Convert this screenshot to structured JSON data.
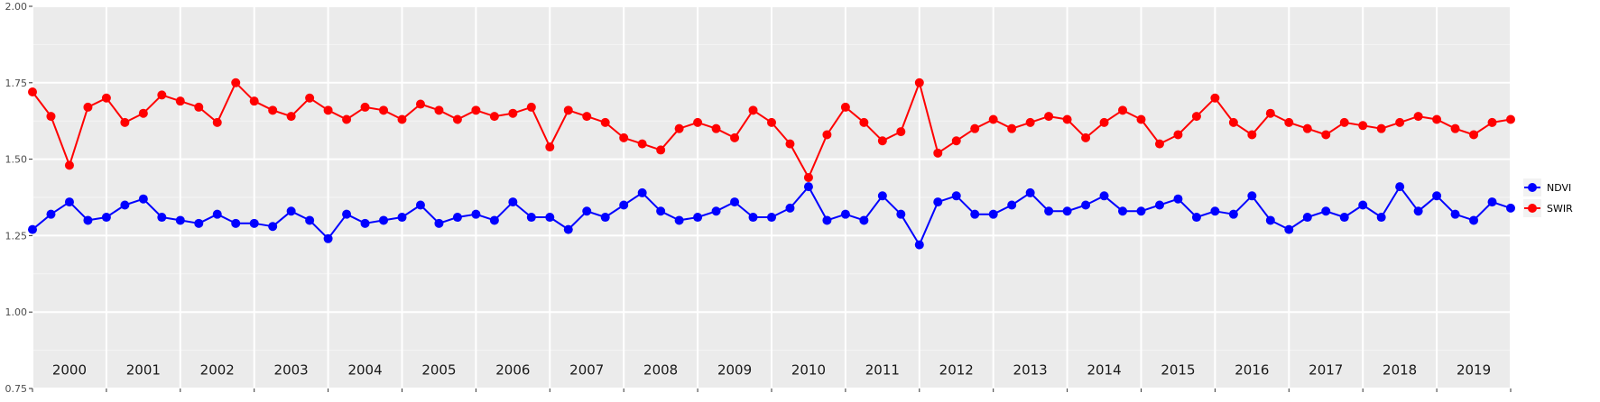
{
  "chart_data": {
    "type": "line",
    "title": "",
    "xlabel": "",
    "ylabel": "",
    "ylim": [
      0.75,
      2.0
    ],
    "xlim": [
      2000,
      2020
    ],
    "yticks": [
      "0.75",
      "1.00",
      "1.25",
      "1.50",
      "1.75",
      "2.00"
    ],
    "year_labels": [
      "2000",
      "2001",
      "2002",
      "2003",
      "2004",
      "2005",
      "2006",
      "2007",
      "2008",
      "2009",
      "2010",
      "2011",
      "2012",
      "2013",
      "2014",
      "2015",
      "2016",
      "2017",
      "2018",
      "2019"
    ],
    "grid": true,
    "legend": {
      "position": "right",
      "entries": [
        "NDVI",
        "SWIR"
      ]
    },
    "series": [
      {
        "name": "NDVI",
        "color": "#0000FF",
        "x": [
          2000.0,
          2000.25,
          2000.5,
          2000.75,
          2001.0,
          2001.25,
          2001.5,
          2001.75,
          2002.0,
          2002.25,
          2002.5,
          2002.75,
          2003.0,
          2003.25,
          2003.5,
          2003.75,
          2004.0,
          2004.25,
          2004.5,
          2004.75,
          2005.0,
          2005.25,
          2005.5,
          2005.75,
          2006.0,
          2006.25,
          2006.5,
          2006.75,
          2007.0,
          2007.25,
          2007.5,
          2007.75,
          2008.0,
          2008.25,
          2008.5,
          2008.75,
          2009.0,
          2009.25,
          2009.5,
          2009.75,
          2010.0,
          2010.25,
          2010.5,
          2010.75,
          2011.0,
          2011.25,
          2011.5,
          2011.75,
          2012.0,
          2012.25,
          2012.5,
          2012.75,
          2013.0,
          2013.25,
          2013.5,
          2013.75,
          2014.0,
          2014.25,
          2014.5,
          2014.75,
          2015.0,
          2015.25,
          2015.5,
          2015.75,
          2016.0,
          2016.25,
          2016.5,
          2016.75,
          2017.0,
          2017.25,
          2017.5,
          2017.75,
          2018.0,
          2018.25,
          2018.5,
          2018.75,
          2019.0,
          2019.25,
          2019.5,
          2019.75,
          2020.0
        ],
        "values": [
          1.27,
          1.32,
          1.36,
          1.3,
          1.31,
          1.35,
          1.37,
          1.31,
          1.3,
          1.29,
          1.32,
          1.29,
          1.29,
          1.28,
          1.33,
          1.3,
          1.24,
          1.32,
          1.29,
          1.3,
          1.31,
          1.35,
          1.29,
          1.31,
          1.32,
          1.3,
          1.36,
          1.31,
          1.31,
          1.27,
          1.33,
          1.31,
          1.35,
          1.39,
          1.33,
          1.3,
          1.31,
          1.33,
          1.36,
          1.31,
          1.31,
          1.34,
          1.41,
          1.3,
          1.32,
          1.3,
          1.38,
          1.32,
          1.22,
          1.36,
          1.38,
          1.32,
          1.32,
          1.35,
          1.39,
          1.33,
          1.33,
          1.35,
          1.38,
          1.33,
          1.33,
          1.35,
          1.37,
          1.31,
          1.33,
          1.32,
          1.38,
          1.3,
          1.27,
          1.31,
          1.33,
          1.31,
          1.35,
          1.31,
          1.41,
          1.33,
          1.38,
          1.32,
          1.3,
          1.36,
          1.34
        ]
      },
      {
        "name": "SWIR",
        "color": "#FF0000",
        "x": [
          2000.0,
          2000.25,
          2000.5,
          2000.75,
          2001.0,
          2001.25,
          2001.5,
          2001.75,
          2002.0,
          2002.25,
          2002.5,
          2002.75,
          2003.0,
          2003.25,
          2003.5,
          2003.75,
          2004.0,
          2004.25,
          2004.5,
          2004.75,
          2005.0,
          2005.25,
          2005.5,
          2005.75,
          2006.0,
          2006.25,
          2006.5,
          2006.75,
          2007.0,
          2007.25,
          2007.5,
          2007.75,
          2008.0,
          2008.25,
          2008.5,
          2008.75,
          2009.0,
          2009.25,
          2009.5,
          2009.75,
          2010.0,
          2010.25,
          2010.5,
          2010.75,
          2011.0,
          2011.25,
          2011.5,
          2011.75,
          2012.0,
          2012.25,
          2012.5,
          2012.75,
          2013.0,
          2013.25,
          2013.5,
          2013.75,
          2014.0,
          2014.25,
          2014.5,
          2014.75,
          2015.0,
          2015.25,
          2015.5,
          2015.75,
          2016.0,
          2016.25,
          2016.5,
          2016.75,
          2017.0,
          2017.25,
          2017.5,
          2017.75,
          2018.0,
          2018.25,
          2018.5,
          2018.75,
          2019.0,
          2019.25,
          2019.5,
          2019.75,
          2020.0
        ],
        "values": [
          1.72,
          1.64,
          1.48,
          1.67,
          1.7,
          1.62,
          1.65,
          1.71,
          1.69,
          1.67,
          1.62,
          1.75,
          1.69,
          1.66,
          1.64,
          1.7,
          1.66,
          1.63,
          1.67,
          1.66,
          1.63,
          1.68,
          1.66,
          1.63,
          1.66,
          1.64,
          1.65,
          1.67,
          1.54,
          1.66,
          1.64,
          1.62,
          1.57,
          1.55,
          1.53,
          1.6,
          1.62,
          1.6,
          1.57,
          1.66,
          1.62,
          1.55,
          1.44,
          1.58,
          1.67,
          1.62,
          1.56,
          1.59,
          1.75,
          1.52,
          1.56,
          1.6,
          1.63,
          1.6,
          1.62,
          1.64,
          1.63,
          1.57,
          1.62,
          1.66,
          1.63,
          1.55,
          1.58,
          1.64,
          1.7,
          1.62,
          1.58,
          1.65,
          1.62,
          1.6,
          1.58,
          1.62,
          1.61,
          1.6,
          1.62,
          1.64,
          1.63,
          1.6,
          1.58,
          1.62,
          1.63
        ]
      }
    ]
  }
}
